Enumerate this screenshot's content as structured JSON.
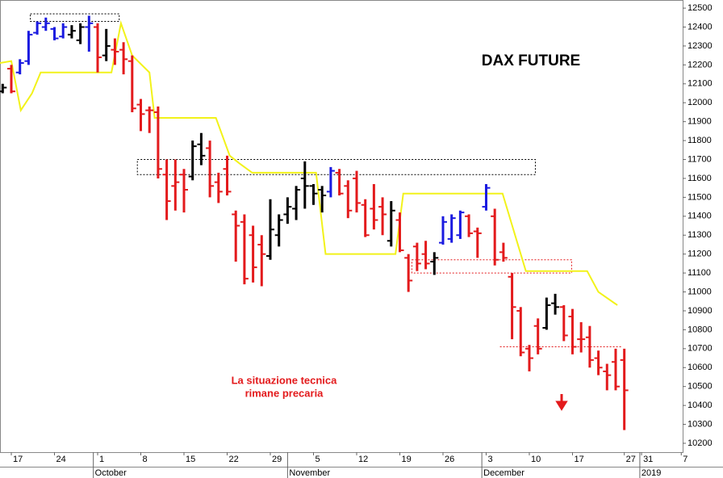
{
  "chart_data": {
    "type": "ohlc",
    "title": "DAX FUTURE",
    "annotation_lines": [
      "La situazione tecnica",
      "rimane precaria"
    ],
    "xlim": [
      -1.31,
      77.76
    ],
    "ylim": [
      10153,
      12543
    ],
    "yticks": [
      10200,
      10300,
      10400,
      10500,
      10600,
      10700,
      10800,
      10900,
      11000,
      11100,
      11200,
      11300,
      11400,
      11500,
      11600,
      11700,
      11800,
      11900,
      12000,
      12100,
      12200,
      12300,
      12400,
      12500
    ],
    "xticks": [
      {
        "value": 0,
        "label": "17"
      },
      {
        "value": 5,
        "label": "24"
      },
      {
        "value": 10,
        "label": "1"
      },
      {
        "value": 15,
        "label": "8"
      },
      {
        "value": 20,
        "label": "15"
      },
      {
        "value": 25,
        "label": "22"
      },
      {
        "value": 30,
        "label": "29"
      },
      {
        "value": 35,
        "label": "5"
      },
      {
        "value": 40,
        "label": "12"
      },
      {
        "value": 45,
        "label": "19"
      },
      {
        "value": 50,
        "label": "26"
      },
      {
        "value": 55,
        "label": "3"
      },
      {
        "value": 60,
        "label": "10"
      },
      {
        "value": 65,
        "label": "17"
      },
      {
        "value": 71,
        "label": "27"
      },
      {
        "value": 73,
        "label": "31"
      },
      {
        "value": 77.6,
        "label": "7"
      }
    ],
    "month_ticks": [
      {
        "value": 9.5,
        "label": "October"
      },
      {
        "value": 32,
        "label": "November"
      },
      {
        "value": 54.5,
        "label": "December"
      },
      {
        "value": 72.8,
        "label": "2019"
      }
    ],
    "x": [
      -1,
      0,
      1,
      2,
      3,
      4,
      5,
      6,
      7,
      8,
      9,
      10,
      11,
      12,
      13,
      14,
      15,
      16,
      17,
      18,
      19,
      20,
      21,
      22,
      23,
      24,
      25,
      26,
      27,
      28,
      29,
      30,
      31,
      32,
      33,
      34,
      35,
      36,
      37,
      38,
      39,
      40,
      41,
      42,
      43,
      44,
      45,
      46,
      47,
      48,
      49,
      50,
      51,
      52,
      53,
      54,
      55,
      56,
      57,
      58,
      59,
      60,
      61,
      62,
      63,
      64,
      65,
      66,
      67,
      68,
      69,
      70,
      71
    ],
    "open": [
      12060,
      12180,
      12160,
      12220,
      12370,
      12400,
      12390,
      12350,
      12360,
      12330,
      12400,
      12400,
      12250,
      12280,
      12280,
      12220,
      11990,
      11960,
      11950,
      11620,
      11560,
      11620,
      11610,
      11780,
      11760,
      11580,
      11650,
      11410,
      11370,
      11300,
      11250,
      11190,
      11300,
      11410,
      11440,
      11600,
      11560,
      11540,
      11530,
      11630,
      11560,
      11600,
      11460,
      11440,
      11450,
      11270,
      11380,
      11180,
      11240,
      11200,
      11160,
      11260,
      11280,
      11300,
      11400,
      11320,
      11450,
      11400,
      11210,
      11080,
      10900,
      10700,
      10820,
      10810,
      10940,
      10920,
      10870,
      10750,
      10760,
      10650,
      10580,
      10630,
      10640
    ],
    "high": [
      12100,
      12200,
      12230,
      12380,
      12430,
      12450,
      12400,
      12420,
      12410,
      12420,
      12460,
      12420,
      12390,
      12340,
      12320,
      12250,
      12020,
      11980,
      11980,
      11700,
      11700,
      11650,
      11800,
      11840,
      11800,
      11630,
      11720,
      11430,
      11410,
      11350,
      11300,
      11490,
      11410,
      11500,
      11560,
      11690,
      11570,
      11560,
      11660,
      11650,
      11590,
      11640,
      11490,
      11570,
      11500,
      11480,
      11420,
      11200,
      11260,
      11270,
      11210,
      11400,
      11410,
      11430,
      11410,
      11340,
      11570,
      11440,
      11260,
      11100,
      10920,
      10720,
      10860,
      10970,
      10990,
      10930,
      10910,
      10840,
      10820,
      10690,
      10620,
      10700,
      10700
    ],
    "low": [
      12050,
      12050,
      12150,
      12200,
      12360,
      12380,
      12330,
      12340,
      12340,
      12310,
      12270,
      12160,
      12220,
      12200,
      12150,
      11950,
      11850,
      11840,
      11600,
      11380,
      11430,
      11420,
      11590,
      11670,
      11500,
      11470,
      11510,
      11160,
      11040,
      11050,
      11030,
      11170,
      11240,
      11360,
      11380,
      11440,
      11460,
      11420,
      11500,
      11510,
      11390,
      11420,
      11290,
      11330,
      11300,
      11240,
      11210,
      11000,
      11110,
      11120,
      11090,
      11250,
      11260,
      11280,
      11290,
      11180,
      11430,
      11140,
      11160,
      10750,
      10660,
      10580,
      10670,
      10800,
      10880,
      10740,
      10670,
      10680,
      10600,
      10560,
      10480,
      10480,
      10270
    ],
    "close": [
      12080,
      12060,
      12210,
      12360,
      12420,
      12420,
      12340,
      12400,
      12380,
      12400,
      12420,
      12240,
      12300,
      12270,
      12230,
      11970,
      11940,
      11960,
      11650,
      11480,
      11580,
      11540,
      11770,
      11720,
      11560,
      11530,
      11530,
      11350,
      11070,
      11130,
      11200,
      11330,
      11380,
      11450,
      11540,
      11560,
      11520,
      11510,
      11640,
      11520,
      11430,
      11470,
      11300,
      11380,
      11410,
      11430,
      11220,
      11060,
      11150,
      11150,
      11180,
      11370,
      11390,
      11420,
      11310,
      11310,
      11550,
      11170,
      11180,
      10920,
      10680,
      10650,
      10700,
      10930,
      10920,
      10770,
      10710,
      10750,
      10640,
      10600,
      10560,
      10500,
      10480
    ],
    "bar_colors": [
      "#000000",
      "#e31a1c",
      "#1a1ae0",
      "#1a1ae0",
      "#1a1ae0",
      "#1a1ae0",
      "#1a1ae0",
      "#1a1ae0",
      "#000000",
      "#000000",
      "#1a1ae0",
      "#e31a1c",
      "#000000",
      "#e31a1c",
      "#e31a1c",
      "#e31a1c",
      "#e31a1c",
      "#e31a1c",
      "#e31a1c",
      "#e31a1c",
      "#e31a1c",
      "#e31a1c",
      "#000000",
      "#000000",
      "#e31a1c",
      "#e31a1c",
      "#e31a1c",
      "#e31a1c",
      "#e31a1c",
      "#e31a1c",
      "#e31a1c",
      "#000000",
      "#000000",
      "#000000",
      "#000000",
      "#000000",
      "#000000",
      "#000000",
      "#1a1ae0",
      "#e31a1c",
      "#e31a1c",
      "#e31a1c",
      "#e31a1c",
      "#e31a1c",
      "#e31a1c",
      "#000000",
      "#e31a1c",
      "#e31a1c",
      "#e31a1c",
      "#e31a1c",
      "#000000",
      "#1a1ae0",
      "#1a1ae0",
      "#1a1ae0",
      "#e31a1c",
      "#e31a1c",
      "#1a1ae0",
      "#e31a1c",
      "#e31a1c",
      "#e31a1c",
      "#e31a1c",
      "#e31a1c",
      "#e31a1c",
      "#000000",
      "#000000",
      "#e31a1c",
      "#e31a1c",
      "#e31a1c",
      "#e31a1c",
      "#e31a1c",
      "#e31a1c",
      "#e31a1c",
      "#e31a1c"
    ],
    "stop_line": {
      "color": "#f2f21a",
      "x": [
        -1.31,
        0,
        1.1,
        2.4,
        3.4,
        11.6,
        12.7,
        14.0,
        16,
        16.6,
        23.7,
        25.3,
        26.4,
        27.9,
        35.3,
        36.4,
        44.5,
        45.4,
        56.9,
        59.6,
        66.7,
        68,
        70.2
      ],
      "values": [
        12210,
        12220,
        11960,
        12050,
        12160,
        12160,
        12420,
        12250,
        12160,
        11920,
        11920,
        11720,
        11680,
        11630,
        11630,
        11200,
        11200,
        11520,
        11520,
        11110,
        11110,
        11000,
        10930
      ]
    },
    "boxes": [
      {
        "x": [
          2.2,
          12.5
        ],
        "y": [
          12430,
          12470
        ],
        "color": "#000000"
      },
      {
        "x": [
          14.6,
          60.7
        ],
        "y": [
          11620,
          11700
        ],
        "color": "#000000"
      },
      {
        "x": [
          46.4,
          64.9
        ],
        "y": [
          11100,
          11170
        ],
        "color": "#e31a1c"
      }
    ],
    "hlines": [
      {
        "x": [
          56.6,
          70.8
        ],
        "y": 10710,
        "color": "#e31a1c"
      }
    ]
  }
}
